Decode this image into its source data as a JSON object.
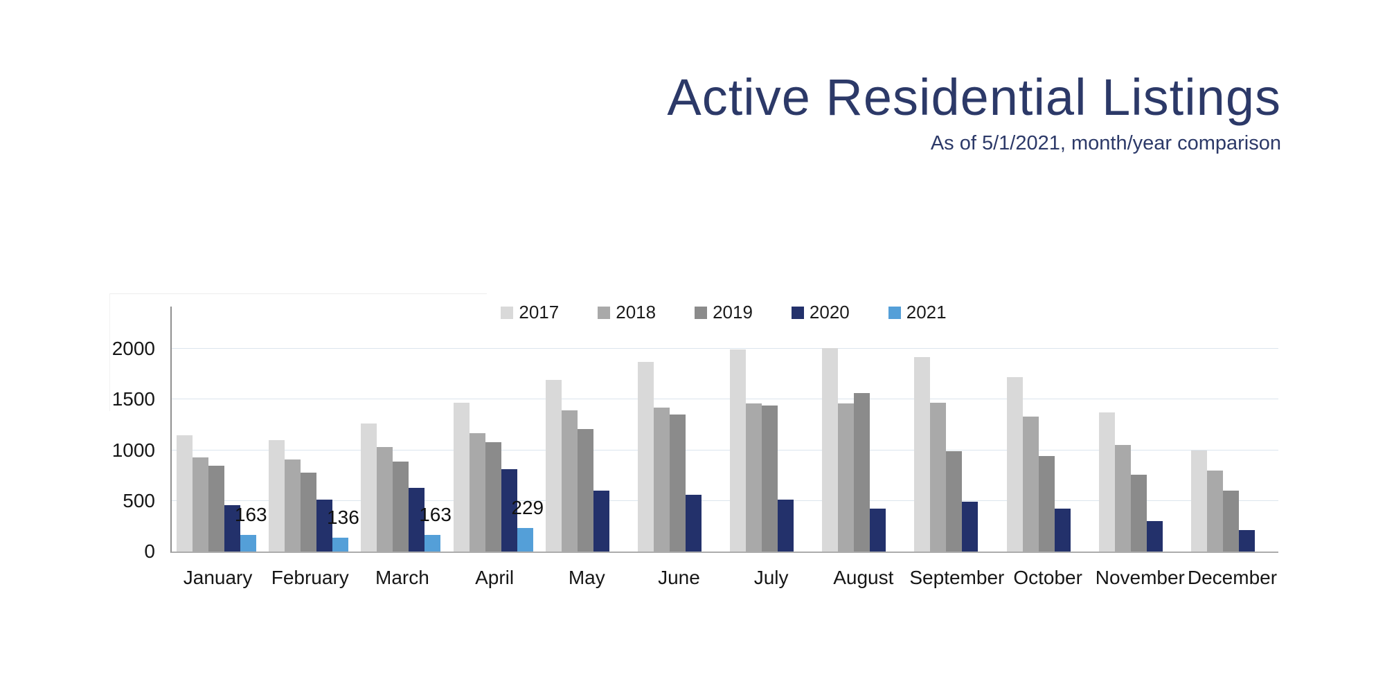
{
  "colors": {
    "title": "#2c3968",
    "grid": "#dbe5ed",
    "axis": "#909090",
    "baseline": "#ababab",
    "tick_text": "#161616"
  },
  "chart_data": {
    "type": "bar",
    "title": "Active Residential Listings",
    "subtitle": "As of 5/1/2021, month/year comparison",
    "categories": [
      "January",
      "February",
      "March",
      "April",
      "May",
      "June",
      "July",
      "August",
      "September",
      "October",
      "November",
      "December"
    ],
    "series": [
      {
        "name": "2017",
        "color": "#d9d9d9",
        "values": [
          1150,
          1100,
          1260,
          1470,
          1690,
          1870,
          1990,
          2010,
          1920,
          1720,
          1370,
          1000
        ]
      },
      {
        "name": "2018",
        "color": "#a9a9a9",
        "values": [
          930,
          910,
          1030,
          1170,
          1390,
          1420,
          1460,
          1460,
          1470,
          1330,
          1050,
          800
        ]
      },
      {
        "name": "2019",
        "color": "#8b8b8b",
        "values": [
          845,
          780,
          890,
          1080,
          1210,
          1350,
          1440,
          1560,
          990,
          940,
          760,
          600
        ]
      },
      {
        "name": "2020",
        "color": "#23316b",
        "values": [
          460,
          510,
          630,
          810,
          600,
          560,
          510,
          420,
          490,
          420,
          300,
          210
        ]
      },
      {
        "name": "2021",
        "color": "#549fd8",
        "data_labels": true,
        "values": [
          163,
          136,
          163,
          229,
          null,
          null,
          null,
          null,
          null,
          null,
          null,
          null
        ]
      }
    ],
    "y_ticks": [
      0,
      500,
      1000,
      1500,
      2000
    ],
    "ylim": [
      0,
      2400
    ],
    "grid": true,
    "legend_position": "top-center"
  }
}
